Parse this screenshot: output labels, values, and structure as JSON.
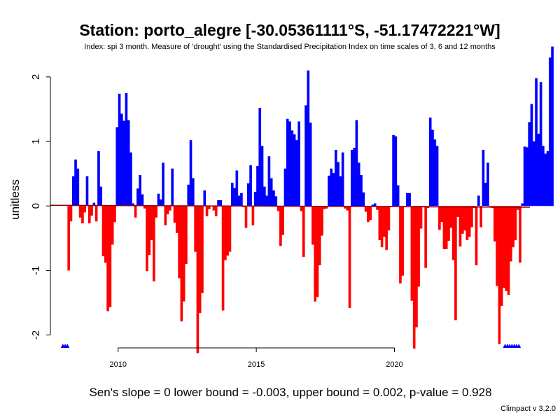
{
  "chart_data": {
    "type": "bar",
    "title": "Station: porto_alegre [-30.05361111°S, -51.17472221°W]",
    "subtitle": "Index: spi 3 month. Measure of 'drought' using the Standardised Precipitation Index on time scales of 3, 6 and 12 months",
    "ylabel": "unitless",
    "xlabel": "",
    "ylim": [
      -2.2,
      2.4
    ],
    "xlim": [
      2007.55,
      2024.9
    ],
    "y_ticks": [
      -2,
      -1,
      0,
      1,
      2
    ],
    "x_ticks": [
      2010,
      2015,
      2020
    ],
    "start_year": 2008.0,
    "positive_color": "#0000ff",
    "negative_color": "#ff0000",
    "trend_color": "#8b0000",
    "trend_line": [
      [
        2007.55,
        0.01
      ],
      [
        2024.9,
        -0.02
      ]
    ],
    "missing_marker_color": "#0000ff",
    "missing_periods": [
      [
        2008.0,
        2008.17
      ],
      [
        2024.0,
        2024.5
      ]
    ],
    "values": [
      null,
      null,
      -1.0,
      -0.24,
      0.46,
      0.72,
      0.58,
      -0.18,
      -0.27,
      -0.1,
      0.46,
      -0.27,
      -0.15,
      0.05,
      -0.24,
      0.85,
      0.3,
      -0.78,
      -0.88,
      -1.63,
      -1.57,
      -0.6,
      -0.25,
      1.22,
      1.74,
      1.43,
      1.32,
      1.75,
      1.33,
      0.83,
      0.04,
      -0.18,
      0.27,
      0.48,
      0.18,
      -0.04,
      -1.01,
      -0.76,
      -0.53,
      -1.17,
      -0.18,
      0.19,
      0.1,
      0.67,
      -0.3,
      -0.13,
      -0.07,
      0.58,
      -0.26,
      -0.42,
      -1.12,
      -1.79,
      -1.48,
      -0.9,
      0.33,
      1.02,
      0.43,
      -0.71,
      -2.28,
      -1.66,
      -1.35,
      0.24,
      -0.16,
      -0.05,
      0.0,
      -0.07,
      -0.16,
      0.09,
      0.09,
      -1.62,
      -0.84,
      -0.77,
      -0.71,
      0.36,
      0.28,
      0.55,
      0.16,
      0.2,
      -0.02,
      -0.34,
      0.35,
      0.63,
      -0.3,
      0.22,
      0.62,
      1.52,
      0.93,
      0.3,
      0.16,
      0.77,
      0.43,
      0.24,
      0.15,
      -0.08,
      -0.62,
      -0.45,
      0.58,
      1.35,
      1.31,
      1.17,
      1.11,
      1.02,
      1.31,
      -0.08,
      -0.79,
      1.56,
      2.1,
      1.29,
      -0.6,
      -1.48,
      -1.41,
      -0.92,
      -0.46,
      -0.05,
      -0.04,
      0.47,
      0.58,
      0.51,
      0.87,
      0.68,
      0.46,
      0.83,
      -0.04,
      -0.07,
      -1.58,
      0.87,
      0.9,
      1.33,
      0.67,
      0.48,
      0.21,
      -0.09,
      -0.25,
      -0.22,
      0.02,
      0.04,
      -0.06,
      -0.53,
      -0.64,
      -0.48,
      -0.68,
      -0.38,
      0.0,
      1.1,
      1.08,
      0.32,
      -1.2,
      -1.08,
      0.0,
      0.2,
      0.2,
      -1.47,
      -2.21,
      -1.88,
      -1.25,
      -0.35,
      0.0,
      -0.96,
      -0.03,
      1.37,
      1.18,
      1.03,
      0.93,
      -0.37,
      -0.25,
      -0.67,
      -0.67,
      -0.54,
      -0.34,
      -0.84,
      -1.77,
      -0.17,
      -0.63,
      -0.43,
      -0.38,
      -0.53,
      -0.48,
      -0.33,
      -0.03,
      -0.92,
      0.16,
      -0.33,
      0.87,
      0.36,
      0.67,
      -0.02,
      -0.03,
      -0.55,
      -1.24,
      -2.14,
      -1.55,
      -1.27,
      -1.32,
      -1.38,
      -0.86,
      -0.64,
      -0.53,
      -0.06,
      -0.88,
      0.04,
      0.92,
      0.91,
      1.3,
      1.58,
      1.0,
      1.98,
      1.12,
      1.92,
      0.93,
      0.81,
      0.85,
      2.3,
      2.47
    ]
  },
  "footer": "Sen's slope = 0   lower bound = -0.003,   upper bound = 0.002,   p-value = 0.928",
  "credit": "Climpact v 3.2.0"
}
